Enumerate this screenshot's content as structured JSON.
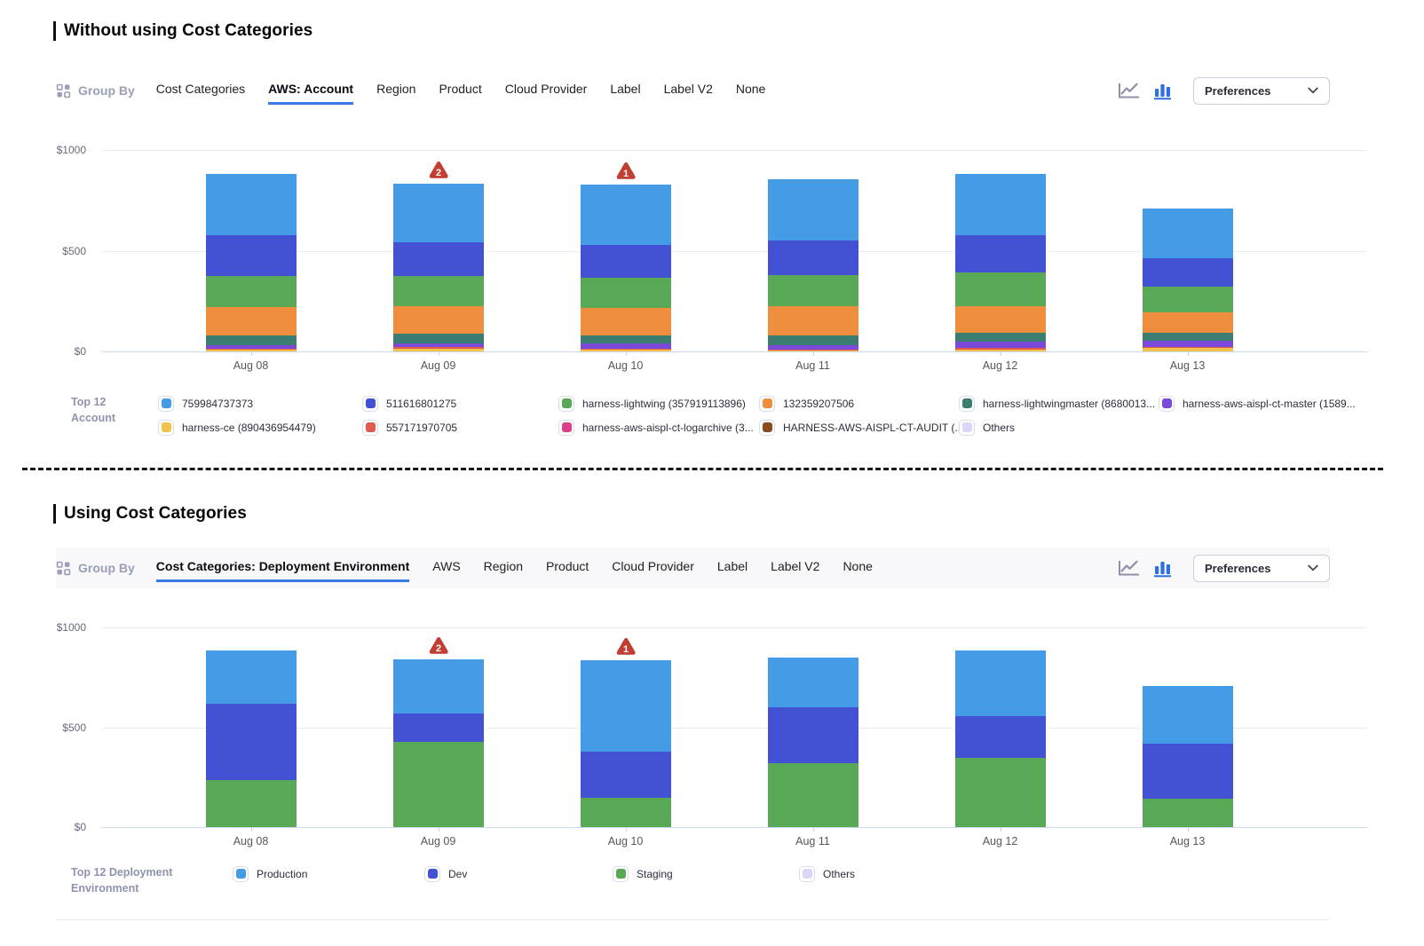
{
  "sections": [
    {
      "title": "Without using Cost Categories",
      "toolbar": {
        "group_by_label": "Group By",
        "tabs": [
          {
            "label": "Cost Categories",
            "active": false
          },
          {
            "label": "AWS: Account",
            "active": true
          },
          {
            "label": "Region",
            "active": false
          },
          {
            "label": "Product",
            "active": false
          },
          {
            "label": "Cloud Provider",
            "active": false
          },
          {
            "label": "Label",
            "active": false
          },
          {
            "label": "Label V2",
            "active": false
          },
          {
            "label": "None",
            "active": false
          }
        ],
        "chart_toggle_icons": [
          {
            "name": "line-chart-icon",
            "active": false
          },
          {
            "name": "bar-chart-icon",
            "active": true
          }
        ],
        "preferences_label": "Preferences"
      },
      "legend_label": "Top 12 Account",
      "legend": [
        {
          "label": "759984737373",
          "color": "#449BE6"
        },
        {
          "label": "harness-ce (890436954479)",
          "color": "#F2C24A"
        },
        {
          "label": "511616801275",
          "color": "#4351D5"
        },
        {
          "label": "557171970705",
          "color": "#E05A4D"
        },
        {
          "label": "harness-lightwing (357919113896)",
          "color": "#58A855"
        },
        {
          "label": "harness-aws-aispl-ct-logarchive (3...",
          "color": "#DB3E8C"
        },
        {
          "label": "132359207506",
          "color": "#EF8E3D"
        },
        {
          "label": "HARNESS-AWS-AISPL-CT-AUDIT (...",
          "color": "#8A4B1F"
        },
        {
          "label": "harness-lightwingmaster (8680013...",
          "color": "#3C7D71"
        },
        {
          "label": "Others",
          "color": "#D9D7F8"
        },
        {
          "label": "harness-aws-aispl-ct-master (1589...",
          "color": "#7B4ADA"
        }
      ]
    },
    {
      "title": "Using Cost Categories",
      "toolbar": {
        "group_by_label": "Group By",
        "tabs": [
          {
            "label": "Cost Categories: Deployment Environment",
            "active": true
          },
          {
            "label": "AWS",
            "active": false
          },
          {
            "label": "Region",
            "active": false
          },
          {
            "label": "Product",
            "active": false
          },
          {
            "label": "Cloud Provider",
            "active": false
          },
          {
            "label": "Label",
            "active": false
          },
          {
            "label": "Label V2",
            "active": false
          },
          {
            "label": "None",
            "active": false
          }
        ],
        "chart_toggle_icons": [
          {
            "name": "line-chart-icon",
            "active": false
          },
          {
            "name": "bar-chart-icon",
            "active": true
          }
        ],
        "preferences_label": "Preferences"
      },
      "legend_label": "Top 12 Deployment Environment",
      "legend": [
        {
          "label": "Production",
          "color": "#449BE6"
        },
        {
          "label": "Dev",
          "color": "#4351D5"
        },
        {
          "label": "Staging",
          "color": "#58A855"
        },
        {
          "label": "Others",
          "color": "#D9D7F8"
        }
      ]
    }
  ],
  "chart_data": [
    {
      "type": "bar",
      "stacked": true,
      "title": "Daily AWS cost grouped by AWS: Account",
      "categories": [
        "Aug 08",
        "Aug 09",
        "Aug 10",
        "Aug 11",
        "Aug 12",
        "Aug 13"
      ],
      "series": [
        {
          "name": "harness-ce (890436954479)",
          "color": "#F2C24A",
          "values": [
            8,
            12,
            8,
            6,
            10,
            20
          ]
        },
        {
          "name": "557171970705",
          "color": "#E05A4D",
          "values": [
            6,
            10,
            6,
            5,
            8,
            4
          ]
        },
        {
          "name": "harness-aws-aispl-ct-master (1589...",
          "color": "#7B4ADA",
          "values": [
            15,
            17,
            27,
            22,
            31,
            31
          ]
        },
        {
          "name": "harness-lightwingmaster (8680013...",
          "color": "#3C7D71",
          "values": [
            50,
            47,
            40,
            47,
            43,
            36
          ]
        },
        {
          "name": "132359207506",
          "color": "#EF8E3D",
          "values": [
            140,
            137,
            134,
            143,
            134,
            103
          ]
        },
        {
          "name": "harness-lightwing (357919113896)",
          "color": "#58A855",
          "values": [
            155,
            151,
            150,
            155,
            166,
            130
          ]
        },
        {
          "name": "511616801275",
          "color": "#4351D5",
          "values": [
            204,
            166,
            162,
            173,
            187,
            139
          ]
        },
        {
          "name": "759984737373",
          "color": "#449BE6",
          "values": [
            304,
            294,
            303,
            302,
            302,
            246
          ]
        }
      ],
      "yticks": [
        {
          "label": "$0",
          "value": 0
        },
        {
          "label": "$500",
          "value": 500
        },
        {
          "label": "$1000",
          "value": 1000
        }
      ],
      "ylim": [
        0,
        1000
      ],
      "grid": true,
      "legend_position": "bottom",
      "anomalies": [
        {
          "category": "Aug 09",
          "count": 2
        },
        {
          "category": "Aug 10",
          "count": 1
        }
      ]
    },
    {
      "type": "bar",
      "stacked": true,
      "title": "Daily AWS cost grouped by Cost Categories: Deployment Environment",
      "categories": [
        "Aug 08",
        "Aug 09",
        "Aug 10",
        "Aug 11",
        "Aug 12",
        "Aug 13"
      ],
      "series": [
        {
          "name": "Staging",
          "color": "#58A855",
          "values": [
            236,
            425,
            149,
            321,
            345,
            141
          ]
        },
        {
          "name": "Dev",
          "color": "#4351D5",
          "values": [
            383,
            143,
            228,
            279,
            209,
            276
          ]
        },
        {
          "name": "Production",
          "color": "#449BE6",
          "values": [
            265,
            272,
            459,
            249,
            331,
            288
          ]
        }
      ],
      "yticks": [
        {
          "label": "$0",
          "value": 0
        },
        {
          "label": "$500",
          "value": 500
        },
        {
          "label": "$1000",
          "value": 1000
        }
      ],
      "ylim": [
        0,
        1000
      ],
      "grid": true,
      "legend_position": "bottom",
      "anomalies": [
        {
          "category": "Aug 09",
          "count": 2
        },
        {
          "category": "Aug 10",
          "count": 1
        }
      ]
    }
  ],
  "colors": {
    "active_tab_underline": "#3c79e7",
    "anomaly_badge": "#c23d32",
    "bar_chart_icon_active": "#2e6fe2",
    "line_chart_icon_inactive": "#8f91a8"
  }
}
